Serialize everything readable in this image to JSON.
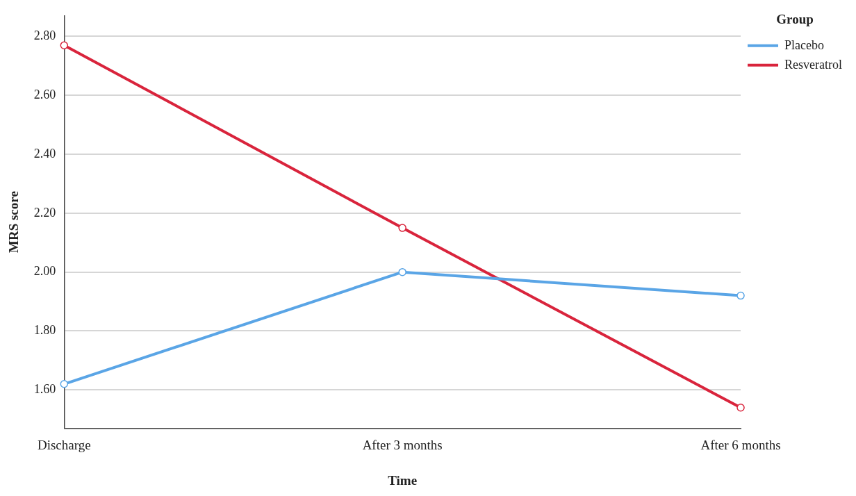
{
  "chart_data": {
    "type": "line",
    "xlabel": "Time",
    "ylabel": "MRS score",
    "legend_title": "Group",
    "categories": [
      "Discharge",
      "After 3 months",
      "After 6 months"
    ],
    "series": [
      {
        "name": "Placebo",
        "color": "#5aa5e6",
        "values": [
          1.62,
          2.0,
          1.92
        ]
      },
      {
        "name": "Resveratrol",
        "color": "#d9243c",
        "values": [
          2.77,
          2.15,
          1.54
        ]
      }
    ],
    "ylim": [
      1.47,
      2.87
    ],
    "yticks": [
      {
        "value": 1.6,
        "label": "1.60"
      },
      {
        "value": 1.8,
        "label": "1.80"
      },
      {
        "value": 2.0,
        "label": "2.00"
      },
      {
        "value": 2.2,
        "label": "2.20"
      },
      {
        "value": 2.4,
        "label": "2.40"
      },
      {
        "value": 2.6,
        "label": "2.60"
      },
      {
        "value": 2.8,
        "label": "2.80"
      }
    ],
    "grid": "y",
    "legend": "top right",
    "marker": "circle",
    "line_style": "solid"
  }
}
